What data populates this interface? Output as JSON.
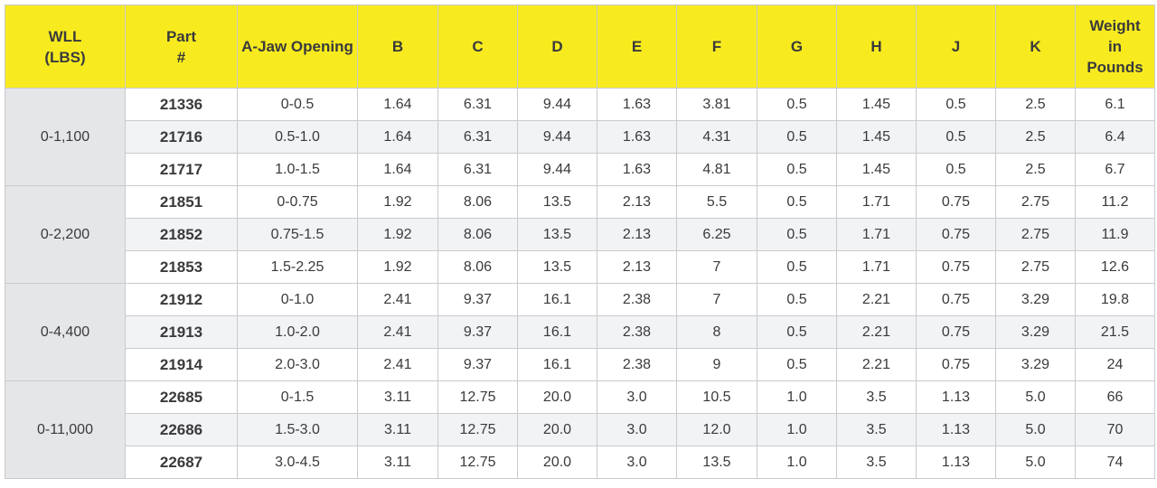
{
  "headers": {
    "wll": [
      "WLL",
      "(LBS)"
    ],
    "part": [
      "Part",
      "#"
    ],
    "a_jaw": "A-Jaw Opening",
    "b": "B",
    "c": "C",
    "d": "D",
    "e": "E",
    "f": "F",
    "g": "G",
    "h": "H",
    "j": "J",
    "k": "K",
    "weight": [
      "Weight",
      "in",
      "Pounds"
    ]
  },
  "groups": [
    {
      "wll": "0-1,100",
      "rows": [
        {
          "part": "21336",
          "a": "0-0.5",
          "b": "1.64",
          "c": "6.31",
          "d": "9.44",
          "e": "1.63",
          "f": "3.81",
          "g": "0.5",
          "h": "1.45",
          "j": "0.5",
          "k": "2.5",
          "w": "6.1"
        },
        {
          "part": "21716",
          "a": "0.5-1.0",
          "b": "1.64",
          "c": "6.31",
          "d": "9.44",
          "e": "1.63",
          "f": "4.31",
          "g": "0.5",
          "h": "1.45",
          "j": "0.5",
          "k": "2.5",
          "w": "6.4"
        },
        {
          "part": "21717",
          "a": "1.0-1.5",
          "b": "1.64",
          "c": "6.31",
          "d": "9.44",
          "e": "1.63",
          "f": "4.81",
          "g": "0.5",
          "h": "1.45",
          "j": "0.5",
          "k": "2.5",
          "w": "6.7"
        }
      ]
    },
    {
      "wll": "0-2,200",
      "rows": [
        {
          "part": "21851",
          "a": "0-0.75",
          "b": "1.92",
          "c": "8.06",
          "d": "13.5",
          "e": "2.13",
          "f": "5.5",
          "g": "0.5",
          "h": "1.71",
          "j": "0.75",
          "k": "2.75",
          "w": "11.2"
        },
        {
          "part": "21852",
          "a": "0.75-1.5",
          "b": "1.92",
          "c": "8.06",
          "d": "13.5",
          "e": "2.13",
          "f": "6.25",
          "g": "0.5",
          "h": "1.71",
          "j": "0.75",
          "k": "2.75",
          "w": "11.9"
        },
        {
          "part": "21853",
          "a": "1.5-2.25",
          "b": "1.92",
          "c": "8.06",
          "d": "13.5",
          "e": "2.13",
          "f": "7",
          "g": "0.5",
          "h": "1.71",
          "j": "0.75",
          "k": "2.75",
          "w": "12.6"
        }
      ]
    },
    {
      "wll": "0-4,400",
      "rows": [
        {
          "part": "21912",
          "a": "0-1.0",
          "b": "2.41",
          "c": "9.37",
          "d": "16.1",
          "e": "2.38",
          "f": "7",
          "g": "0.5",
          "h": "2.21",
          "j": "0.75",
          "k": "3.29",
          "w": "19.8"
        },
        {
          "part": "21913",
          "a": "1.0-2.0",
          "b": "2.41",
          "c": "9.37",
          "d": "16.1",
          "e": "2.38",
          "f": "8",
          "g": "0.5",
          "h": "2.21",
          "j": "0.75",
          "k": "3.29",
          "w": "21.5"
        },
        {
          "part": "21914",
          "a": "2.0-3.0",
          "b": "2.41",
          "c": "9.37",
          "d": "16.1",
          "e": "2.38",
          "f": "9",
          "g": "0.5",
          "h": "2.21",
          "j": "0.75",
          "k": "3.29",
          "w": "24"
        }
      ]
    },
    {
      "wll": "0-11,000",
      "rows": [
        {
          "part": "22685",
          "a": "0-1.5",
          "b": "3.11",
          "c": "12.75",
          "d": "20.0",
          "e": "3.0",
          "f": "10.5",
          "g": "1.0",
          "h": "3.5",
          "j": "1.13",
          "k": "5.0",
          "w": "66"
        },
        {
          "part": "22686",
          "a": "1.5-3.0",
          "b": "3.11",
          "c": "12.75",
          "d": "20.0",
          "e": "3.0",
          "f": "12.0",
          "g": "1.0",
          "h": "3.5",
          "j": "1.13",
          "k": "5.0",
          "w": "70"
        },
        {
          "part": "22687",
          "a": "3.0-4.5",
          "b": "3.11",
          "c": "12.75",
          "d": "20.0",
          "e": "3.0",
          "f": "13.5",
          "g": "1.0",
          "h": "3.5",
          "j": "1.13",
          "k": "5.0",
          "w": "74"
        }
      ]
    }
  ],
  "colors": {
    "header_bg": "#f7eb1f",
    "wll_bg": "#e5e6e8",
    "alt_row_bg": "#f2f3f4",
    "text": "#3a3a3c"
  }
}
